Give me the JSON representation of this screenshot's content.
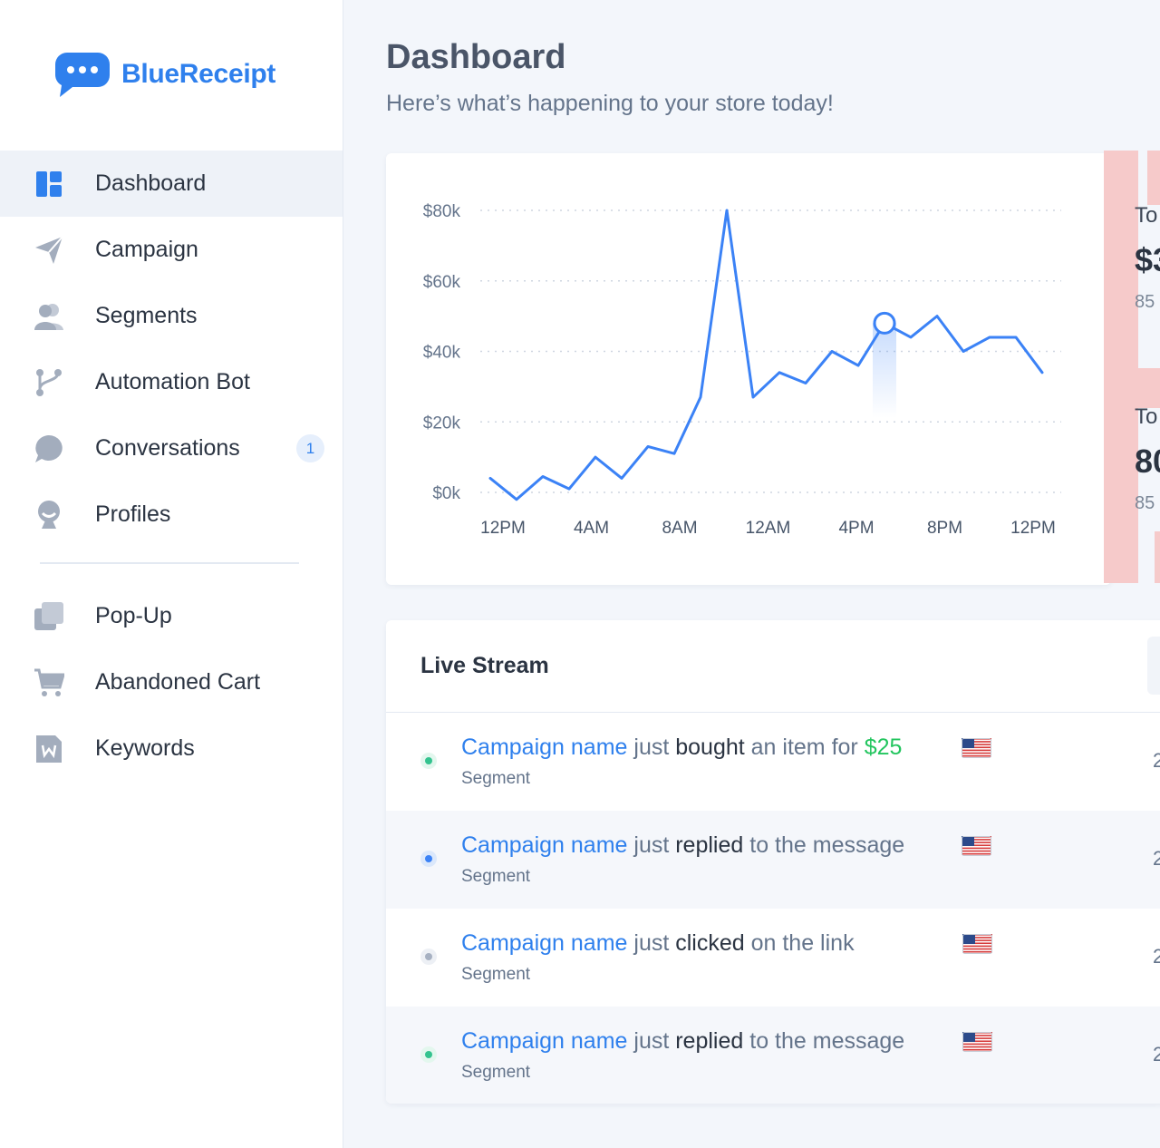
{
  "brand": {
    "name": "BlueReceipt"
  },
  "sidebar": {
    "items": [
      {
        "label": "Dashboard",
        "icon": "dashboard-icon",
        "active": true
      },
      {
        "label": "Campaign",
        "icon": "paper-plane-icon"
      },
      {
        "label": "Segments",
        "icon": "users-icon"
      },
      {
        "label": "Automation Bot",
        "icon": "branch-icon"
      },
      {
        "label": "Conversations",
        "icon": "chat-bubble-icon",
        "badge": "1"
      },
      {
        "label": "Profiles",
        "icon": "profile-icon"
      }
    ],
    "items2": [
      {
        "label": "Pop-Up",
        "icon": "popup-icon"
      },
      {
        "label": "Abandoned Cart",
        "icon": "cart-icon"
      },
      {
        "label": "Keywords",
        "icon": "keyword-icon"
      }
    ]
  },
  "header": {
    "title": "Dashboard",
    "subtitle": "Here’s what’s happening to your store today!"
  },
  "chart_data": {
    "type": "line",
    "x_tick_labels": [
      "12PM",
      "4AM",
      "8AM",
      "12AM",
      "4PM",
      "8PM",
      "12PM"
    ],
    "y_tick_labels": [
      "$80k",
      "$60k",
      "$40k",
      "$20k",
      "$0k"
    ],
    "ylim": [
      0,
      80
    ],
    "grid": true,
    "line_color": "#3b82f6",
    "values": [
      4,
      -2,
      4.5,
      1,
      10,
      4,
      13,
      11,
      27,
      80,
      27,
      34,
      31,
      40,
      36,
      48,
      44,
      50,
      40,
      44,
      44,
      34
    ],
    "highlight_index": 15
  },
  "stats": [
    {
      "label": "To",
      "value": "$3",
      "sub": "85"
    },
    {
      "label": "To",
      "value": "80",
      "sub": "85"
    }
  ],
  "stream": {
    "title": "Live Stream",
    "rows": [
      {
        "campaign": "Campaign name",
        "just": " just ",
        "action": "bought",
        "rest": " an item for ",
        "amount": "$25",
        "segment": "Segment",
        "dot_color": "#34c38f",
        "halo": "#e3f7ee",
        "time": "2"
      },
      {
        "campaign": "Campaign name",
        "just": " just ",
        "action": "replied",
        "rest": " to the message",
        "amount": "",
        "segment": "Segment",
        "dot_color": "#3b82f6",
        "halo": "#dbe8fb",
        "time": "2"
      },
      {
        "campaign": "Campaign name",
        "just": " just ",
        "action": "clicked",
        "rest": " on the link",
        "amount": "",
        "segment": "Segment",
        "dot_color": "#a7b1c2",
        "halo": "#edf0f5",
        "time": "2"
      },
      {
        "campaign": "Campaign name",
        "just": " just ",
        "action": "replied",
        "rest": " to the message",
        "amount": "",
        "segment": "Segment",
        "dot_color": "#34c38f",
        "halo": "#e3f7ee",
        "time": "2"
      }
    ]
  }
}
